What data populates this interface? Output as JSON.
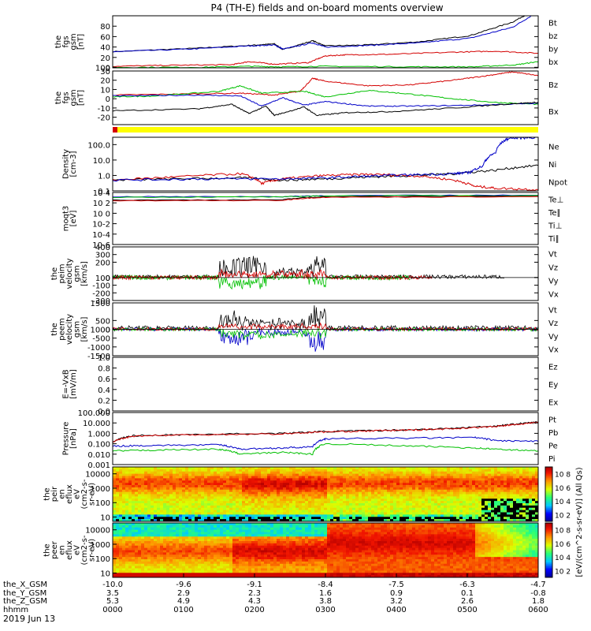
{
  "figure": {
    "title": "P4 (TH-E) fields and on-board moments overview",
    "date_label": "2019 Jun 13"
  },
  "chart_data": {
    "type": "line",
    "panels": [
      {
        "id": "fgs-gsm-mag",
        "ylabel": [
          "the",
          "fgs",
          "gsm",
          "[nT]"
        ],
        "yscale": "linear",
        "ylim": [
          0,
          100
        ],
        "yticks": [
          "0",
          "20",
          "40",
          "60",
          "80",
          "100"
        ],
        "legend": [
          {
            "label": "Bt",
            "color": "#000000"
          },
          {
            "label": "bz",
            "color": "#d40000"
          },
          {
            "label": "by",
            "color": "#00c000"
          },
          {
            "label": "bx",
            "color": "#0000c8"
          }
        ],
        "series": [
          {
            "color": "#000000",
            "t": [
              0,
              0.18,
              0.32,
              0.38,
              0.4,
              0.47,
              0.5,
              0.6,
              0.72,
              0.84,
              0.94,
              1.0
            ],
            "v": [
              31,
              37,
              43,
              46,
              35,
              52,
              42,
              44,
              50,
              62,
              88,
              115
            ]
          },
          {
            "color": "#0000c8",
            "t": [
              0,
              0.18,
              0.32,
              0.38,
              0.4,
              0.47,
              0.5,
              0.6,
              0.72,
              0.84,
              0.94,
              1.0
            ],
            "v": [
              31,
              36,
              42,
              44,
              36,
              48,
              40,
              43,
              48,
              57,
              78,
              108
            ]
          },
          {
            "color": "#d40000",
            "t": [
              0,
              0.15,
              0.28,
              0.32,
              0.38,
              0.46,
              0.5,
              0.55,
              0.65,
              0.8,
              0.9,
              1.0
            ],
            "v": [
              3,
              5,
              6,
              12,
              7,
              10,
              23,
              25,
              26,
              30,
              32,
              28
            ]
          },
          {
            "color": "#00c000",
            "t": [
              0,
              0.2,
              0.32,
              0.4,
              0.5,
              0.7,
              0.85,
              0.95,
              1.0
            ],
            "v": [
              1,
              1,
              3,
              2,
              3,
              2,
              2,
              6,
              12
            ]
          }
        ]
      },
      {
        "id": "fgs-gsm-comp",
        "ylabel": [
          "the",
          "fgs",
          "gsm",
          "[nT]"
        ],
        "yscale": "linear",
        "ylim": [
          -28,
          30
        ],
        "yticks": [
          "-20",
          "-10",
          "0",
          "10",
          "20",
          "30"
        ],
        "legend": [
          {
            "label": "Bz",
            "color": "#d40000"
          },
          {
            "label": "Bx",
            "color": "#00c000"
          }
        ],
        "series": [
          {
            "color": "#d40000",
            "t": [
              0,
              0.15,
              0.3,
              0.38,
              0.44,
              0.47,
              0.5,
              0.6,
              0.7,
              0.8,
              0.88,
              0.94,
              1.0
            ],
            "v": [
              4,
              5,
              6,
              4,
              8,
              22,
              19,
              14,
              15,
              20,
              25,
              29,
              25
            ]
          },
          {
            "color": "#00c000",
            "t": [
              0,
              0.1,
              0.25,
              0.3,
              0.35,
              0.45,
              0.5,
              0.6,
              0.7,
              0.8,
              0.9,
              1.0
            ],
            "v": [
              2,
              3,
              8,
              14,
              6,
              8,
              2,
              9,
              5,
              0,
              -4,
              -6
            ]
          },
          {
            "color": "#0000c8",
            "t": [
              0,
              0.2,
              0.3,
              0.35,
              0.4,
              0.45,
              0.5,
              0.6,
              0.7,
              0.85,
              1.0
            ],
            "v": [
              3,
              4,
              3,
              -8,
              1,
              -7,
              -3,
              -8,
              -8,
              -7,
              -5
            ]
          },
          {
            "color": "#000000",
            "t": [
              0,
              0.2,
              0.28,
              0.32,
              0.36,
              0.38,
              0.45,
              0.48,
              0.55,
              0.65,
              0.8,
              0.95,
              1.0
            ],
            "v": [
              -13,
              -11,
              -6,
              -16,
              -8,
              -18,
              -9,
              -18,
              -15,
              -14,
              -10,
              -5,
              -4
            ]
          }
        ]
      },
      {
        "id": "density",
        "ylabel": [
          "Density",
          "[cm-3]"
        ],
        "yscale": "log",
        "ylim": [
          0.1,
          300
        ],
        "yticks": [
          "0.1",
          "1.0",
          "10.0",
          "100.0"
        ],
        "legend": [
          {
            "label": "Ne",
            "color": "#d40000"
          },
          {
            "label": "Ni",
            "color": "#000000"
          },
          {
            "label": "Npot",
            "color": "#0000c8"
          }
        ],
        "series": [
          {
            "color": "#000000",
            "t": [
              0,
              0.15,
              0.3,
              0.4,
              0.5,
              0.6,
              0.7,
              0.8,
              0.9,
              1.0
            ],
            "v": [
              0.5,
              0.6,
              0.7,
              0.5,
              0.6,
              0.8,
              1.0,
              1.3,
              2.2,
              4.5
            ]
          },
          {
            "color": "#d40000",
            "t": [
              0,
              0.15,
              0.3,
              0.35,
              0.4,
              0.5,
              0.6,
              0.7,
              0.8,
              0.85,
              0.9,
              1.0
            ],
            "v": [
              0.5,
              0.8,
              1.3,
              0.3,
              0.6,
              1.0,
              1.2,
              1.0,
              0.5,
              0.2,
              0.15,
              0.12
            ]
          },
          {
            "color": "#0000c8",
            "t": [
              0,
              0.2,
              0.4,
              0.5,
              0.6,
              0.7,
              0.8,
              0.84,
              0.87,
              0.9,
              0.93,
              1.0
            ],
            "v": [
              0.5,
              0.6,
              0.6,
              0.7,
              0.9,
              1.1,
              1.3,
              1.6,
              4,
              30,
              250,
              300
            ]
          }
        ]
      },
      {
        "id": "temperature",
        "ylabel": [
          "moqt3",
          "[eV]"
        ],
        "yscale": "log",
        "ylim": [
          1e-06,
          10000
        ],
        "yticks": [
          "10-6",
          "10-4",
          "10-2",
          "10 0",
          "10 2",
          "10 4"
        ],
        "legend": [
          {
            "label": "Te⊥",
            "color": "#d40000"
          },
          {
            "label": "Te∥",
            "color": "#000000"
          },
          {
            "label": "Ti⊥",
            "color": "#0000c8"
          },
          {
            "label": "Ti∥",
            "color": "#00c000"
          }
        ],
        "series": [
          {
            "color": "#0000c8",
            "t": [
              0,
              0.4,
              0.5,
              1.0
            ],
            "v": [
              1500,
              1600,
              2500,
              3000
            ]
          },
          {
            "color": "#00c000",
            "t": [
              0,
              0.4,
              0.5,
              1.0
            ],
            "v": [
              1200,
              1400,
              2200,
              2700
            ]
          },
          {
            "color": "#000000",
            "t": [
              0,
              0.4,
              0.5,
              1.0
            ],
            "v": [
              350,
              400,
              1500,
              1800
            ]
          },
          {
            "color": "#d40000",
            "t": [
              0,
              0.4,
              0.5,
              1.0
            ],
            "v": [
              250,
              300,
              1200,
              1600
            ]
          }
        ]
      },
      {
        "id": "peim-velocity",
        "ylabel": [
          "the",
          "peim",
          "velocity",
          "gsm",
          "[km/s]"
        ],
        "yscale": "linear",
        "ylim": [
          -300,
          400
        ],
        "yticks": [
          "-300",
          "-200",
          "-100",
          "0",
          "100",
          "200",
          "300",
          "400"
        ],
        "legend": [
          {
            "label": "Vt",
            "color": "#000000"
          },
          {
            "label": "Vz",
            "color": "#d40000"
          },
          {
            "label": "Vy",
            "color": "#00c000"
          },
          {
            "label": "Vx",
            "color": "#0000c8"
          }
        ],
        "series": [],
        "spikes": [
          {
            "color": "#000000",
            "t0": 0.0,
            "t1": 0.92,
            "base": 10,
            "amp": 25,
            "bursts": [
              [
                0.25,
                0.36,
                260
              ],
              [
                0.38,
                0.46,
                120
              ],
              [
                0.46,
                0.5,
                260
              ]
            ]
          },
          {
            "color": "#00c000",
            "t0": 0.0,
            "t1": 0.7,
            "base": 0,
            "amp": 30,
            "bursts": [
              [
                0.25,
                0.36,
                -140
              ],
              [
                0.46,
                0.5,
                -120
              ]
            ]
          },
          {
            "color": "#d40000",
            "t0": 0.0,
            "t1": 0.75,
            "base": 0,
            "amp": 25,
            "bursts": [
              [
                0.25,
                0.5,
                80
              ]
            ]
          }
        ]
      },
      {
        "id": "peem-velocity",
        "ylabel": [
          "the",
          "peem",
          "velocity",
          "gsm",
          "[km/s]"
        ],
        "yscale": "linear",
        "ylim": [
          -1500,
          1500
        ],
        "yticks": [
          "-1500",
          "-1000",
          "-500",
          "0",
          "500",
          "1000",
          "1500"
        ],
        "legend": [
          {
            "label": "Vt",
            "color": "#000000"
          },
          {
            "label": "Vz",
            "color": "#d40000"
          },
          {
            "label": "Vy",
            "color": "#00c000"
          },
          {
            "label": "Vx",
            "color": "#0000c8"
          }
        ],
        "series": [],
        "spikes": [
          {
            "color": "#000000",
            "t0": 0.0,
            "t1": 1.0,
            "base": 60,
            "amp": 150,
            "bursts": [
              [
                0.25,
                0.33,
                900
              ],
              [
                0.33,
                0.46,
                500
              ],
              [
                0.46,
                0.5,
                1400
              ]
            ]
          },
          {
            "color": "#0000c8",
            "t0": 0.0,
            "t1": 1.0,
            "base": 0,
            "amp": 100,
            "bursts": [
              [
                0.25,
                0.33,
                -900
              ],
              [
                0.33,
                0.46,
                -350
              ],
              [
                0.46,
                0.5,
                -1300
              ]
            ]
          },
          {
            "color": "#00c000",
            "t0": 0.0,
            "t1": 1.0,
            "base": 0,
            "amp": 100,
            "bursts": [
              [
                0.25,
                0.5,
                -500
              ]
            ]
          },
          {
            "color": "#d40000",
            "t0": 0.0,
            "t1": 1.0,
            "base": 20,
            "amp": 90,
            "bursts": [
              [
                0.25,
                0.5,
                250
              ]
            ]
          }
        ]
      },
      {
        "id": "efield",
        "ylabel": [
          "E=-VxB",
          "[mV/m]"
        ],
        "yscale": "linear",
        "ylim": [
          0,
          1
        ],
        "yticks": [
          "0.0",
          "0.2",
          "0.4",
          "0.6",
          "0.8",
          "1.0"
        ],
        "legend": [
          {
            "label": "Ez",
            "color": "#d40000"
          },
          {
            "label": "Ey",
            "color": "#00c000"
          },
          {
            "label": "Ex",
            "color": "#0000c8"
          }
        ],
        "series": []
      },
      {
        "id": "pressure",
        "ylabel": [
          "Pressure",
          "[nPa]"
        ],
        "yscale": "log",
        "ylim": [
          0.001,
          100
        ],
        "yticks": [
          "0.001",
          "0.010",
          "0.100",
          "1.000",
          "10.000",
          "100.000"
        ],
        "legend": [
          {
            "label": "Pt",
            "color": "#000000"
          },
          {
            "label": "Pb",
            "color": "#d40000"
          },
          {
            "label": "Pe",
            "color": "#00c000"
          },
          {
            "label": "Pi",
            "color": "#0000c8"
          }
        ],
        "series": [
          {
            "color": "#000000",
            "t": [
              0,
              0.05,
              0.2,
              0.4,
              0.5,
              0.6,
              0.7,
              0.8,
              0.9,
              0.95,
              1.0
            ],
            "v": [
              0.15,
              0.6,
              0.8,
              1.0,
              1.5,
              1.8,
              2.2,
              3.0,
              5.0,
              8,
              12
            ]
          },
          {
            "color": "#d40000",
            "t": [
              0,
              0.05,
              0.2,
              0.4,
              0.5,
              0.6,
              0.7,
              0.8,
              0.9,
              0.95,
              1.0
            ],
            "v": [
              0.14,
              0.55,
              0.75,
              0.9,
              1.4,
              1.7,
              2.1,
              2.8,
              4.5,
              7,
              11
            ]
          },
          {
            "color": "#0000c8",
            "t": [
              0,
              0.1,
              0.25,
              0.3,
              0.4,
              0.47,
              0.5,
              0.7,
              0.85,
              0.9,
              1.0
            ],
            "v": [
              0.06,
              0.07,
              0.08,
              0.03,
              0.04,
              0.05,
              0.3,
              0.35,
              0.4,
              0.2,
              0.17
            ]
          },
          {
            "color": "#00c000",
            "t": [
              0,
              0.1,
              0.25,
              0.3,
              0.4,
              0.47,
              0.5,
              0.7,
              0.85,
              0.9,
              1.0
            ],
            "v": [
              0.02,
              0.025,
              0.03,
              0.01,
              0.015,
              0.01,
              0.1,
              0.06,
              0.04,
              0.03,
              0.02
            ]
          }
        ]
      }
    ],
    "spectrograms": [
      {
        "id": "peir-en-eflux",
        "ylabel": [
          "the",
          "peir",
          "en",
          "eflux",
          "eV",
          "(cm2-s-",
          "sr-eV)"
        ],
        "yticks": [
          "10",
          "100",
          "1000",
          "10000"
        ],
        "colorbar_label": "[eV/(cm^2-s-sr-eV)] (All Qs)",
        "colorbar_ticks": [
          "10 8",
          "10 6",
          "10 4",
          "10 2"
        ]
      },
      {
        "id": "peer-en-eflux",
        "ylabel": [
          "the",
          "peer",
          "en",
          "eflux",
          "eV",
          "(cm2-s-",
          "sr-eV)"
        ],
        "yticks": [
          "10",
          "100",
          "1000",
          "10000"
        ],
        "colorbar_label": "[eV/(cm^2-s-sr-eV)]",
        "colorbar_ticks": [
          "10 8",
          "10 6",
          "10 4",
          "10 2"
        ]
      }
    ],
    "xaxis": {
      "rows": [
        {
          "label": "the_X_GSM",
          "values": [
            "-10.0",
            "-9.6",
            "-9.1",
            "-8.4",
            "-7.5",
            "-6.3",
            "-4.7"
          ]
        },
        {
          "label": "the_Y_GSM",
          "values": [
            "3.5",
            "2.9",
            "2.3",
            "1.6",
            "0.9",
            "0.1",
            "-0.8"
          ]
        },
        {
          "label": "the_Z_GSM",
          "values": [
            "5.3",
            "4.9",
            "4.3",
            "3.8",
            "3.2",
            "2.6",
            "1.8"
          ]
        },
        {
          "label": "hhmm",
          "values": [
            "0000",
            "0100",
            "0200",
            "0300",
            "0400",
            "0500",
            "0600"
          ]
        }
      ]
    }
  },
  "colors": {
    "yellow_bar": "#ffff00",
    "red_marker": "#d40000"
  }
}
